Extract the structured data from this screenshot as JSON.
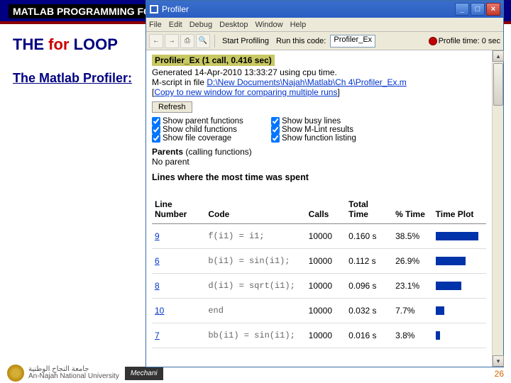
{
  "slide": {
    "band_label": "MATLAB PROGRAMMING FO",
    "heading_pre": "THE ",
    "heading_kw": "for",
    "heading_post": " LOOP",
    "subheading": "The Matlab Profiler:",
    "footer_uni_ar": "جامعة النجاح الوطنية",
    "footer_uni_en": "An-Najah National University",
    "footer_chip": "Mechani",
    "page_num": "26"
  },
  "window": {
    "title": "Profiler",
    "menus": [
      "File",
      "Edit",
      "Debug",
      "Desktop",
      "Window",
      "Help"
    ],
    "toolbar": {
      "start_label": "Start Profiling",
      "run_label": "Run this code:",
      "run_value": "Profiler_Ex",
      "profile_time": "Profile time: 0 sec"
    }
  },
  "profiler": {
    "fn_title": "Profiler_Ex (1 call, 0.416 sec)",
    "generated": "Generated 14-Apr-2010 13:33:27 using cpu time.",
    "mscript_pre": "M-script in file ",
    "mscript_link": "D:\\New Documents\\Najah\\Matlab\\Ch 4\\Profiler_Ex.m",
    "copy_link": "Copy to new window for comparing multiple runs",
    "refresh": "Refresh",
    "checks": [
      {
        "label": "Show parent functions",
        "checked": true
      },
      {
        "label": "Show busy lines",
        "checked": true
      },
      {
        "label": "Show child functions",
        "checked": true
      },
      {
        "label": "Show M-Lint results",
        "checked": true
      },
      {
        "label": "Show file coverage",
        "checked": true
      },
      {
        "label": "Show function listing",
        "checked": true
      }
    ],
    "parents_h": "Parents",
    "parents_sub": " (calling functions)",
    "no_parent": "No parent",
    "lines_h": "Lines where the most time was spent",
    "columns": [
      "Line Number",
      "Code",
      "Calls",
      "Total Time",
      "% Time",
      "Time Plot"
    ],
    "col_widths": [
      "16%",
      "30%",
      "12%",
      "14%",
      "12%",
      "16%"
    ],
    "bar_color": "#0033aa",
    "rows": [
      {
        "line": "9",
        "code": "f(i1) = i1;",
        "calls": "10000",
        "total": "0.160 s",
        "pct": "38.5%",
        "bar": 38.5
      },
      {
        "line": "6",
        "code": "b(i1) = sin(i1);",
        "calls": "10000",
        "total": "0.112 s",
        "pct": "26.9%",
        "bar": 26.9
      },
      {
        "line": "8",
        "code": "d(i1) = sqrt(i1);",
        "calls": "10000",
        "total": "0.096 s",
        "pct": "23.1%",
        "bar": 23.1
      },
      {
        "line": "10",
        "code": "end",
        "calls": "10000",
        "total": "0.032 s",
        "pct": "7.7%",
        "bar": 7.7
      },
      {
        "line": "7",
        "code": "bb(i1) = sin(i1);",
        "calls": "10000",
        "total": "0.016 s",
        "pct": "3.8%",
        "bar": 3.8
      }
    ]
  }
}
